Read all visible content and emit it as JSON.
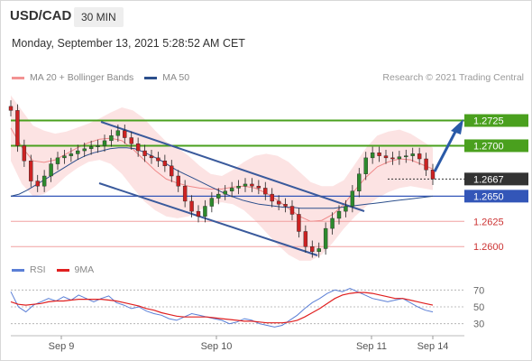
{
  "header": {
    "symbol": "USD/CAD",
    "timeframe": "30 MIN",
    "datetime": "Monday, September 13, 2021 5:28:52 AM CET"
  },
  "legend": {
    "items": [
      {
        "label": "MA 20 + Bollinger Bands",
        "color": "#f39393"
      },
      {
        "label": "MA 50",
        "color": "#2c4f8c"
      }
    ],
    "credit": "Research © 2021 Trading Central"
  },
  "rsi_legend": {
    "items": [
      {
        "label": "RSI",
        "color": "#5b7fd6"
      },
      {
        "label": "9MA",
        "color": "#e02020"
      }
    ]
  },
  "colors": {
    "resistance": "#4aa01e",
    "support": "#3356b8",
    "support2": "#f0a0a0",
    "last": "#333333",
    "candle_up": "#2d8a2d",
    "candle_down": "#cc2222",
    "band": "#fcdede",
    "channel": "#3a5a9c",
    "arrow": "#2a5aa8"
  },
  "chart_data": [
    {
      "type": "candlestick",
      "title": "USD/CAD",
      "ylim": [
        1.2585,
        1.2755
      ],
      "x_ticks": [
        "Sep 9",
        "Sep 10",
        "Sep 11",
        "Sep 14"
      ],
      "levels": [
        {
          "label": "1.2725",
          "value": 1.2725,
          "kind": "resistance"
        },
        {
          "label": "1.2700",
          "value": 1.27,
          "kind": "resistance"
        },
        {
          "label": "1.2667",
          "value": 1.2667,
          "kind": "last"
        },
        {
          "label": "1.2650",
          "value": 1.265,
          "kind": "support"
        },
        {
          "label": "1.2625",
          "value": 1.2625,
          "kind": "support2"
        },
        {
          "label": "1.2600",
          "value": 1.26,
          "kind": "support2"
        }
      ],
      "close_series": [
        1.2735,
        1.27,
        1.2685,
        1.2665,
        1.266,
        1.267,
        1.2682,
        1.2688,
        1.269,
        1.2692,
        1.2695,
        1.2697,
        1.2699,
        1.27,
        1.2705,
        1.271,
        1.2715,
        1.2708,
        1.2702,
        1.2695,
        1.269,
        1.2688,
        1.2685,
        1.268,
        1.267,
        1.266,
        1.2645,
        1.2635,
        1.263,
        1.264,
        1.2648,
        1.2652,
        1.2655,
        1.2658,
        1.266,
        1.2662,
        1.266,
        1.2658,
        1.2652,
        1.2645,
        1.2642,
        1.264,
        1.2632,
        1.2615,
        1.26,
        1.2595,
        1.2598,
        1.2618,
        1.2628,
        1.2635,
        1.264,
        1.2655,
        1.2672,
        1.2688,
        1.2693,
        1.269,
        1.2688,
        1.2687,
        1.2689,
        1.269,
        1.2692,
        1.2687,
        1.2676,
        1.2667
      ],
      "ma50_series": [
        1.265,
        1.2652,
        1.2656,
        1.2661,
        1.2666,
        1.2671,
        1.2676,
        1.2681,
        1.2686,
        1.269,
        1.2693,
        1.2695,
        1.2697,
        1.2698,
        1.2698,
        1.2697,
        1.2694,
        1.269,
        1.2686,
        1.2681,
        1.2676,
        1.2672,
        1.2668,
        1.2664,
        1.266,
        1.2656,
        1.2652,
        1.2649,
        1.2646,
        1.2644,
        1.2642,
        1.2641,
        1.264,
        1.2639,
        1.2639,
        1.2638,
        1.2638,
        1.2638,
        1.2638,
        1.2638,
        1.2639,
        1.264,
        1.2641,
        1.2642,
        1.2643,
        1.2644,
        1.2645,
        1.2646,
        1.2647,
        1.2648,
        1.2649,
        1.265
      ],
      "upper_band": [
        1.275,
        1.2735,
        1.272,
        1.2715,
        1.2712,
        1.2714,
        1.2718,
        1.2722,
        1.2727,
        1.2733,
        1.2738,
        1.2735,
        1.2727,
        1.2715,
        1.2704,
        1.2698,
        1.269,
        1.268,
        1.2672,
        1.267,
        1.2676,
        1.2684,
        1.269,
        1.2692,
        1.269,
        1.2684,
        1.2674,
        1.2664,
        1.266,
        1.266,
        1.2666,
        1.2682,
        1.2698,
        1.271,
        1.2714,
        1.2716,
        1.2712,
        1.2705,
        1.2698
      ],
      "lower_band": [
        1.2685,
        1.2662,
        1.265,
        1.2652,
        1.266,
        1.267,
        1.2678,
        1.2684,
        1.2686,
        1.2682,
        1.2672,
        1.2658,
        1.2645,
        1.2636,
        1.263,
        1.2628,
        1.263,
        1.2636,
        1.2642,
        1.2644,
        1.2642,
        1.2636,
        1.2626,
        1.2614,
        1.2602,
        1.2592,
        1.2586,
        1.2586,
        1.2592,
        1.2604,
        1.2618,
        1.263,
        1.264,
        1.2648,
        1.2654,
        1.2658,
        1.266,
        1.2658,
        1.2656
      ],
      "channel_lines": [
        {
          "from": [
            1.272,
            "Sep 9"
          ],
          "to": [
            1.2622,
            "Sep 11"
          ]
        },
        {
          "from": [
            1.2654,
            "Sep 9"
          ],
          "to": [
            1.2584,
            "Sep 11"
          ]
        }
      ],
      "annotations": [
        "1.2725",
        "1.2700",
        "1.2667",
        "1.2650",
        "1.2625",
        "1.2600"
      ]
    },
    {
      "type": "line",
      "ylim": [
        20,
        80
      ],
      "y_ticks": [
        70,
        50,
        30
      ],
      "series": [
        {
          "name": "RSI",
          "values": [
            68,
            50,
            44,
            52,
            56,
            60,
            57,
            62,
            58,
            64,
            60,
            56,
            60,
            63,
            55,
            52,
            48,
            50,
            45,
            42,
            40,
            36,
            34,
            38,
            42,
            40,
            38,
            36,
            34,
            30,
            32,
            36,
            34,
            30,
            28,
            26,
            28,
            34,
            40,
            48,
            55,
            60,
            66,
            70,
            68,
            72,
            68,
            64,
            60,
            58,
            56,
            58,
            60,
            55,
            50,
            46,
            44
          ]
        },
        {
          "name": "9MA",
          "values": [
            56,
            53,
            52,
            53,
            54,
            56,
            57,
            57,
            58,
            59,
            59,
            59,
            59,
            58,
            57,
            55,
            53,
            51,
            48,
            46,
            43,
            41,
            39,
            38,
            38,
            38,
            38,
            37,
            36,
            35,
            34,
            33,
            33,
            32,
            31,
            31,
            31,
            32,
            34,
            38,
            43,
            48,
            54,
            60,
            64,
            66,
            67,
            67,
            66,
            64,
            62,
            60,
            60,
            58,
            56,
            54,
            52
          ]
        }
      ]
    }
  ]
}
